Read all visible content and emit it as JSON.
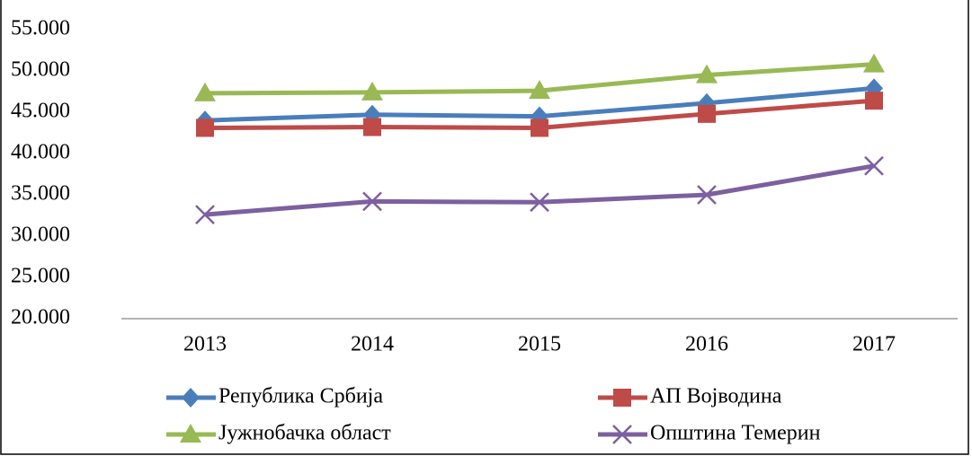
{
  "chart_data": {
    "type": "line",
    "categories": [
      "2013",
      "2014",
      "2015",
      "2016",
      "2017"
    ],
    "series": [
      {
        "name": "Република Србија",
        "color": "#4a7ebb",
        "marker": "diamond",
        "values": [
          44000,
          44700,
          44500,
          46100,
          47900
        ]
      },
      {
        "name": "АП Војводина",
        "color": "#be4b48",
        "marker": "square",
        "values": [
          43100,
          43200,
          43100,
          44800,
          46400
        ]
      },
      {
        "name": "Јужнобачка област",
        "color": "#98b954",
        "marker": "triangle",
        "values": [
          47300,
          47400,
          47600,
          49500,
          50800
        ]
      },
      {
        "name": "Општина Темерин",
        "color": "#7d60a0",
        "marker": "x",
        "values": [
          32600,
          34200,
          34100,
          35000,
          38500
        ]
      }
    ],
    "ylim": [
      20000,
      55000
    ],
    "yticks": [
      {
        "value": 20000,
        "label": "20.000"
      },
      {
        "value": 25000,
        "label": "25.000"
      },
      {
        "value": 30000,
        "label": "30.000"
      },
      {
        "value": 35000,
        "label": "35.000"
      },
      {
        "value": 40000,
        "label": "40.000"
      },
      {
        "value": 45000,
        "label": "45.000"
      },
      {
        "value": 50000,
        "label": "50.000"
      },
      {
        "value": 55000,
        "label": "55.000"
      }
    ],
    "grid": false,
    "legend": "bottom"
  }
}
